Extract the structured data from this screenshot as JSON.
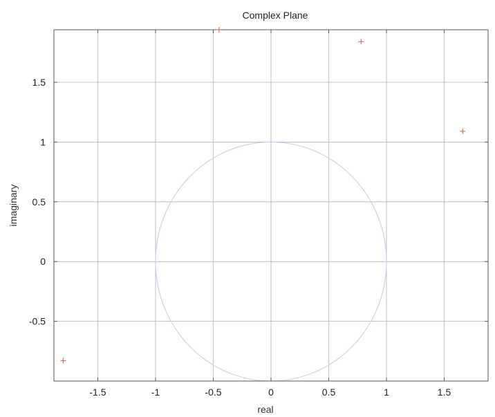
{
  "chart_data": {
    "type": "scatter",
    "title": "Complex Plane",
    "xlabel": "real",
    "ylabel": "imaginary",
    "xlim": [
      -1.88,
      1.88
    ],
    "ylim": [
      -1.0,
      1.94
    ],
    "xticks": [
      -1.5,
      -1,
      -0.5,
      0,
      0.5,
      1,
      1.5
    ],
    "xtick_labels": [
      "-1.5",
      "-1",
      "-0.5",
      "0",
      "0.5",
      "1",
      "1.5"
    ],
    "yticks": [
      -0.5,
      0,
      0.5,
      1,
      1.5
    ],
    "ytick_labels": [
      "-0.5",
      "0",
      "0.5",
      "1",
      "1.5"
    ],
    "grid": true,
    "unit_circle": {
      "center": [
        0,
        0
      ],
      "radius": 1
    },
    "series": [
      {
        "marker": "+",
        "points": [
          {
            "x": -0.45,
            "y": 1.94
          },
          {
            "x": 0.78,
            "y": 1.84
          },
          {
            "x": 1.66,
            "y": 1.09
          },
          {
            "x": -1.8,
            "y": -0.83
          }
        ]
      }
    ],
    "colors": {
      "marker": "#d9534f",
      "circle": "#c8d2ee",
      "grid": "#b0b0b0",
      "axes": "#555555"
    }
  }
}
